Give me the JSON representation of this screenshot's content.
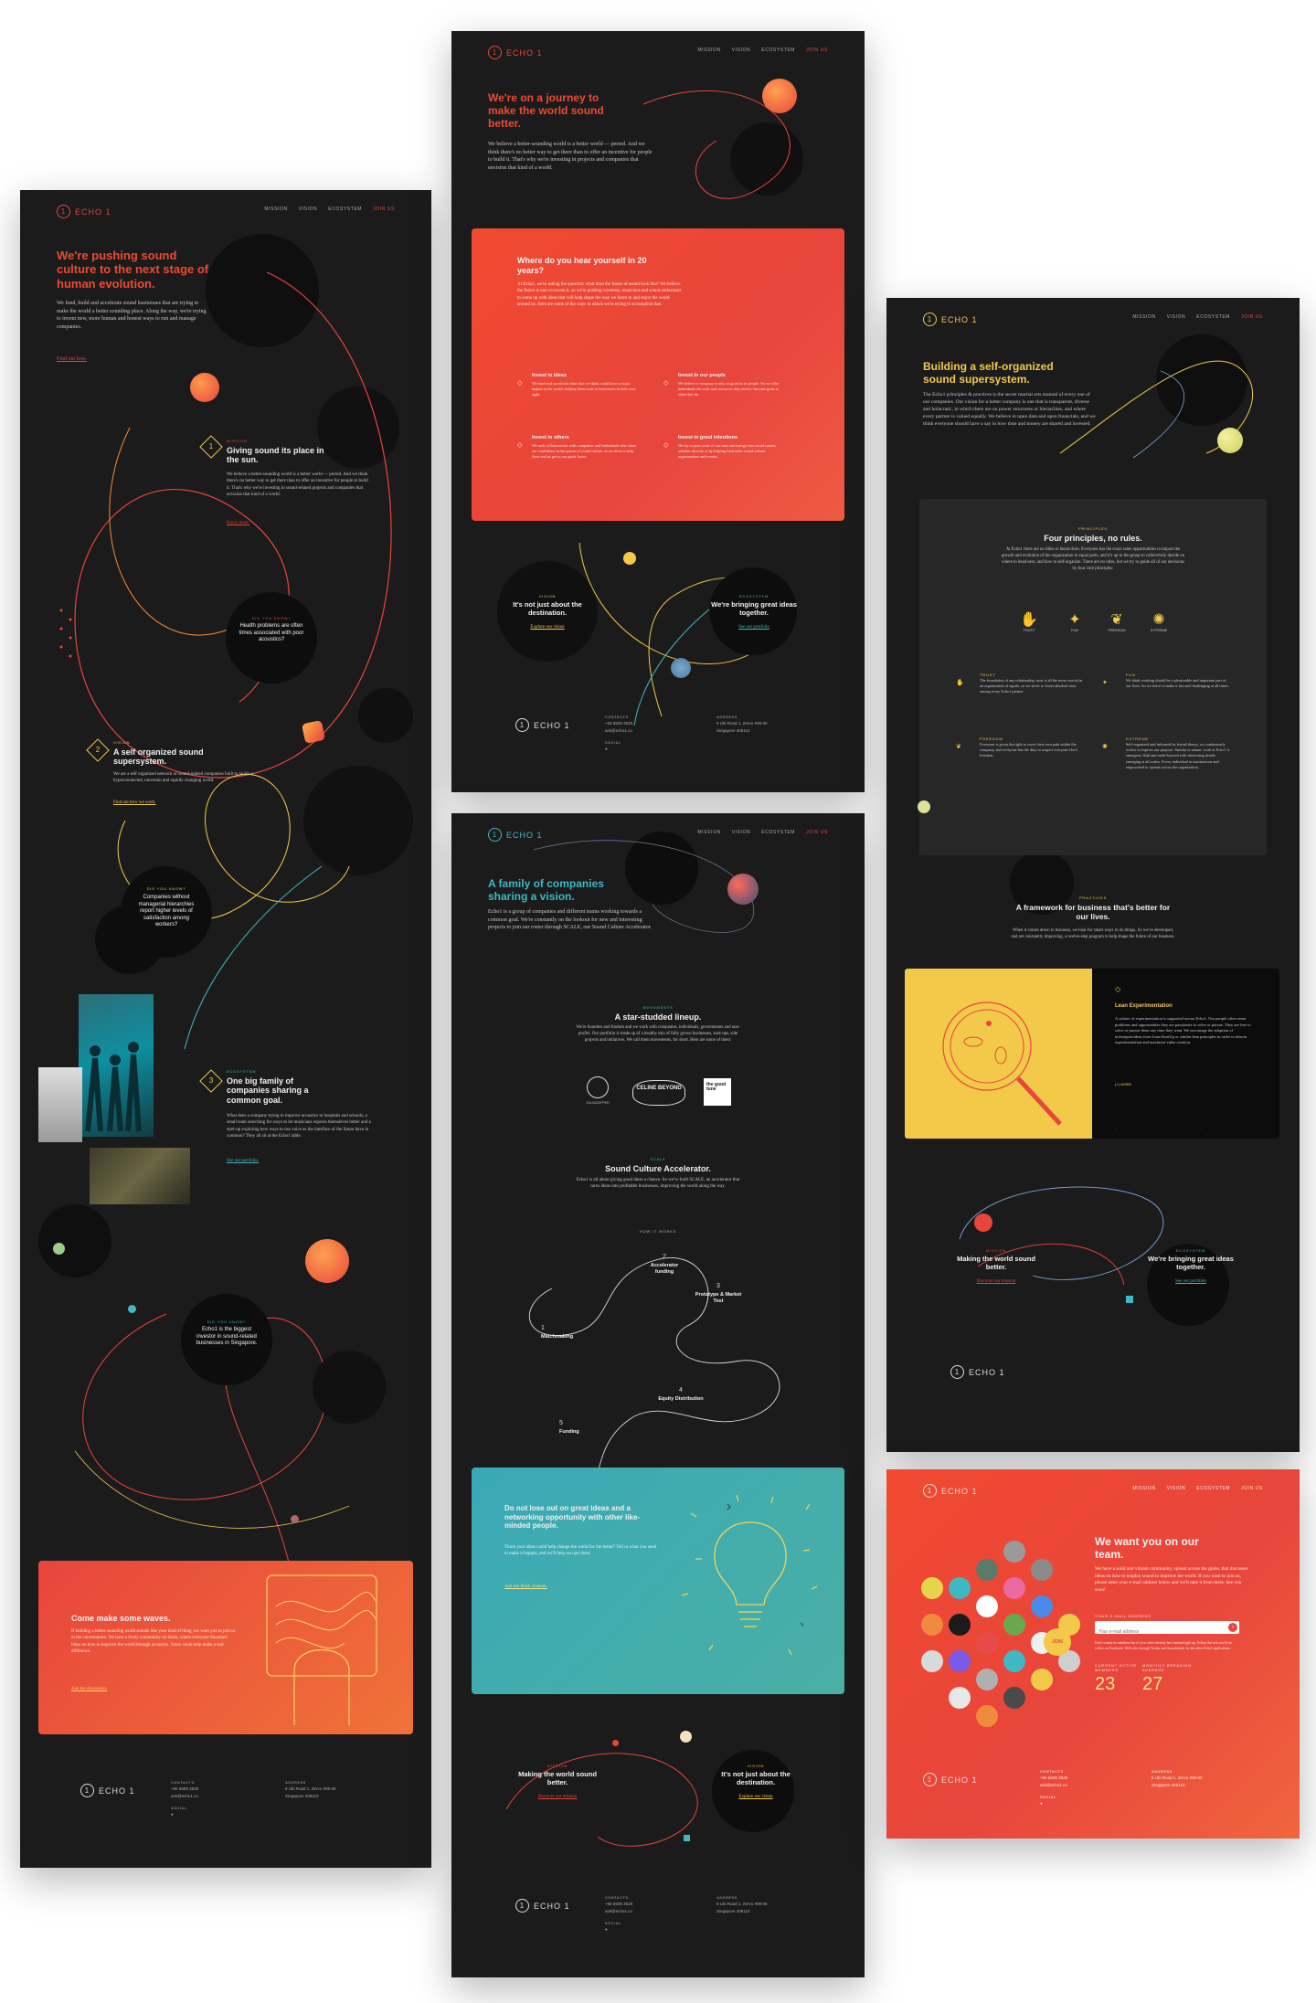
{
  "nav": {
    "logo": "ECHO 1",
    "logo_mark": "1",
    "links": [
      "MISSION",
      "VISION",
      "ECOSYSTEM",
      "JOIN US"
    ]
  },
  "footer": {
    "logo": "ECHO 1",
    "contacts_label": "CONTACTS",
    "phone": "+65 6509 3529",
    "email": "ask@echo1.co",
    "address_label": "ADDRESS",
    "address_1": "8 Ubi Road 1, Zervo #08-00",
    "address_2": "Singapore 408110",
    "social_label": "SOCIAL"
  },
  "panel1": {
    "headline": "We're pushing sound culture to the next stage of human evolution.",
    "intro": "We fund, build and accelerate sound businesses that are trying to make the world a better sounding place. Along the way, we're trying to invent new, more human and honest ways to run and manage companies.",
    "intro_link": "Find out how.",
    "s1_num": "1",
    "s1_kicker": "MISSION",
    "s1_title": "Giving sound its place in the sun.",
    "s1_body": "We believe a better-sounding world is a better world — period. And we think there's no better way to get there than to offer an incentive for people to build it. That's why we're investing in sound-related projects and companies that envision that kind of a world.",
    "s1_link": "Know more.",
    "dyk1_kicker": "DID YOU KNOW?",
    "dyk1": "Health problems are often times associated with poor acoustics?",
    "s2_num": "2",
    "s2_kicker": "VISION",
    "s2_title": "A self organized sound supersystem.",
    "s2_body": "We are a self organized network of sound-related companies built to tackle a hyperconnected, uncertain and rapidly changing world.",
    "s2_link": "Find out how we work.",
    "dyk2_kicker": "DID YOU KNOW?",
    "dyk2": "Companies without managerial hierarchies report higher levels of satisfaction among workers?",
    "s3_num": "3",
    "s3_kicker": "ECOSYSTEM",
    "s3_title": "One big family of companies sharing a common goal.",
    "s3_body": "What does a company trying to improve acoustics in hospitals and schools, a small team searching for ways to let musicians express themselves better and a start-up exploring new ways to use voice as the interface of the future have in common? They all sit at the Echo1 table.",
    "s3_link": "See our portfolio.",
    "dyk3_kicker": "DID YOU KNOW?",
    "dyk3": "Echo1 is the biggest investor in sound-related businesses in Singapore.",
    "cta_title": "Come make some waves.",
    "cta_body": "If building a better-sounding world sounds like your kind of thing, we want you to join us in the conversation. We have a lively community on Slack, where everyone discusses ideas on how to improve the world through acoustics. Yours could help make a real difference.",
    "cta_link": "Join the discussion."
  },
  "panel2": {
    "headline": "We're on a journey to make the world sound better.",
    "intro": "We believe a better-sounding world is a better world — period. And we think there's no better way to get there than to offer an incentive for people to build it. That's why we're investing in projects and companies that envision that kind of a world.",
    "card_title": "Where do you hear yourself in 20 years?",
    "card_body": "At Echo1, we're asking the question: what does the future of sound look like? We believe the future is ours to invent it, so we're pushing scientists, musicians and sound enthusiasts to come up with ideas that will help shape the way we listen to and enjoy the world around us. Here are some of the ways in which we're trying to accomplish that:",
    "items": [
      {
        "title": "Invest in ideas",
        "body": "We fund and accelerate ideas that we think could have a major impact in the world, helping them scale to businesses in their own right."
      },
      {
        "title": "Invest in our people",
        "body": "We believe a company is only as good as its people. So we offer individuals the tools and resources they need to become great at what they do."
      },
      {
        "title": "Invest in others",
        "body": "We seek collaborations with companies and individuals who share our confidence in the power of sound culture, in an effort to help them and us get to our goals faster."
      },
      {
        "title": "Invest in good intentions",
        "body": "We try to pour some of our time and energy into social causes, whether directly or by helping fund other sound culture organizations and events."
      }
    ],
    "b1_kicker": "VISION",
    "b1_title": "It's not just about the destination.",
    "b1_link": "Explore our vision",
    "b2_kicker": "ECOSYSTEM",
    "b2_title": "We're bringing great ideas together.",
    "b2_link": "See our portfolio"
  },
  "panel3": {
    "headline": "A family of companies sharing a vision.",
    "intro": "Echo1 is a group of companies and different teams working towards a common goal. We're constantly on the lookout for new and interesting projects to join our roster through SCALE, our Sound Culture Accelerator.",
    "lineup_kicker": "MOVEMENTS",
    "lineup_title": "A star-studded lineup.",
    "lineup_body": "We're founders and funders and we work with companies, individuals, governments and non-profits. Our portfolio is made up of a healthy mix of fully grown businesses, start-ups, side projects and initiatives. We call them movements, for short. Here are some of them:",
    "logos": [
      "SOUNDZIPPER",
      "CELINE BEYOND",
      "the good tune"
    ],
    "sca_kicker": "SCALE",
    "sca_title": "Sound Culture Accelerator.",
    "sca_body": "Echo1 is all about giving good ideas a chance. So we've built SCALE, an accelerator that turns ideas into profitable businesses, improving the world along the way.",
    "how_label": "HOW IT WORKS",
    "steps": [
      "Matchmaking",
      "Accelerator funding",
      "Prototype & Market Test",
      "Equity Distribution",
      "Funding"
    ],
    "step_nums": [
      "1",
      "2",
      "3",
      "4",
      "5"
    ],
    "card_title": "Do not lose out on great ideas and a networking opportunity with other like-minded people.",
    "card_body": "Think your ideas could help change the world for the better? Tell us what you need to make it happen, and we'll help you get there.",
    "card_link": "Join our Slack channel.",
    "b1_kicker": "MISSION",
    "b1_title": "Making the world sound better.",
    "b1_link": "Discover our mission",
    "b2_kicker": "VISION",
    "b2_title": "It's not just about the destination.",
    "b2_link": "Explore our vision"
  },
  "panel4": {
    "headline": "Building a self-organized sound supersystem.",
    "intro": "The Echo1 principles & practices is the secret martial arts manual of every one of our companies. Our vision for a better company is one that is transparent, diverse and holacratic, in which there are no power structures or hierarchies, and where every partner is valued equally. We believe in open data and open financials, and we think everyone should have a say in how time and money are shared and invested.",
    "principles_kicker": "PRINCIPLES",
    "principles_title": "Four principles, no rules.",
    "principles_body": "At Echo1 there are no titles or hierarchies. Everyone has the exact same opportunities to impact the growth and evolution of the organization in equal parts, and it's up to the group to collectively decide on where to head next, and how to self-organize. There are no rules, but we try to guide all of our decisions by four core principles:",
    "principle_icons": [
      "TRUST",
      "FUN",
      "FREEDOM",
      "EXTREME"
    ],
    "principles": [
      {
        "title": "TRUST",
        "body": "The foundation of any relationship, trust is all the more crucial in an organization of equals, so we strive to foster absolute trust among every Echo1 partner."
      },
      {
        "title": "FUN",
        "body": "We think working should be a pleasurable and important part of our lives. So we strive to make it fun and challenging at all times."
      },
      {
        "title": "FREEDOM",
        "body": "Everyone is given the right to carve their own path within the company, and everyone has the duty to respect everyone else's freedom."
      },
      {
        "title": "EXTREME",
        "body": "Self-organized and informed by fractal theory, we continuously evolve to express our purpose. Similar to nature, work at Echo1 is emergent, fluid and multi-layered with interesting details emerging at all scales. Every individual in autonomous and empowered to operate across the organization."
      }
    ],
    "practices_kicker": "PRACTICES",
    "practices_title": "A framework for business that's better for our lives.",
    "practices_body": "When it comes down to business, we look for smart ways to do things. So we've developed, and are constantly improving, a twelve-step program to help shape the future of our business.",
    "lean_title": "Lean Experimentation",
    "lean_body": "A culture of experimentation is supported across Echo1. Our people often sense problems and opportunities they are passionate to solve or pursue. They are free to solve or pursue them any time they want. We encourage the adoption of techniques/ideas from Lean StartUp or similar lean principles in order to inform experimentation and maximise value creation.",
    "lean_more": "(+) MORE",
    "b1_kicker": "MISSION",
    "b1_title": "Making the world sound better.",
    "b1_link": "Discover our mission",
    "b2_kicker": "ECOSYSTEM",
    "b2_title": "We're bringing great ideas together.",
    "b2_link": "See our portfolio"
  },
  "panel5": {
    "headline": "We want you on our team.",
    "body": "We have a solid and vibrant community, spread across the globe, that discusses ideas on how to employ sound to improve the world. If you want to join us, please enter your e-mail address below and we'll take it from there. See you soon!",
    "field_label": "YOUR E-MAIL ADDRESS",
    "field_placeholder": "Your e-mail address",
    "join_label": "JOIN",
    "fine_print": "Don't wanna be members but of your other identity here instead right up. Follow the rich world we collect on Facebook. We'll also through Twitter and Soundcloud, for the other Echo1 applications.",
    "stat1_label": "CURRENT ACTIVE MEMBERS",
    "stat1_value": "23",
    "stat2_label": "MONTHLY BREAKING AVERAGE",
    "stat2_value": "27"
  },
  "colors": {
    "red": "#ee4a33",
    "yellow": "#f3c94a",
    "teal": "#3fb8c4",
    "dark": "#1b1b1b"
  }
}
